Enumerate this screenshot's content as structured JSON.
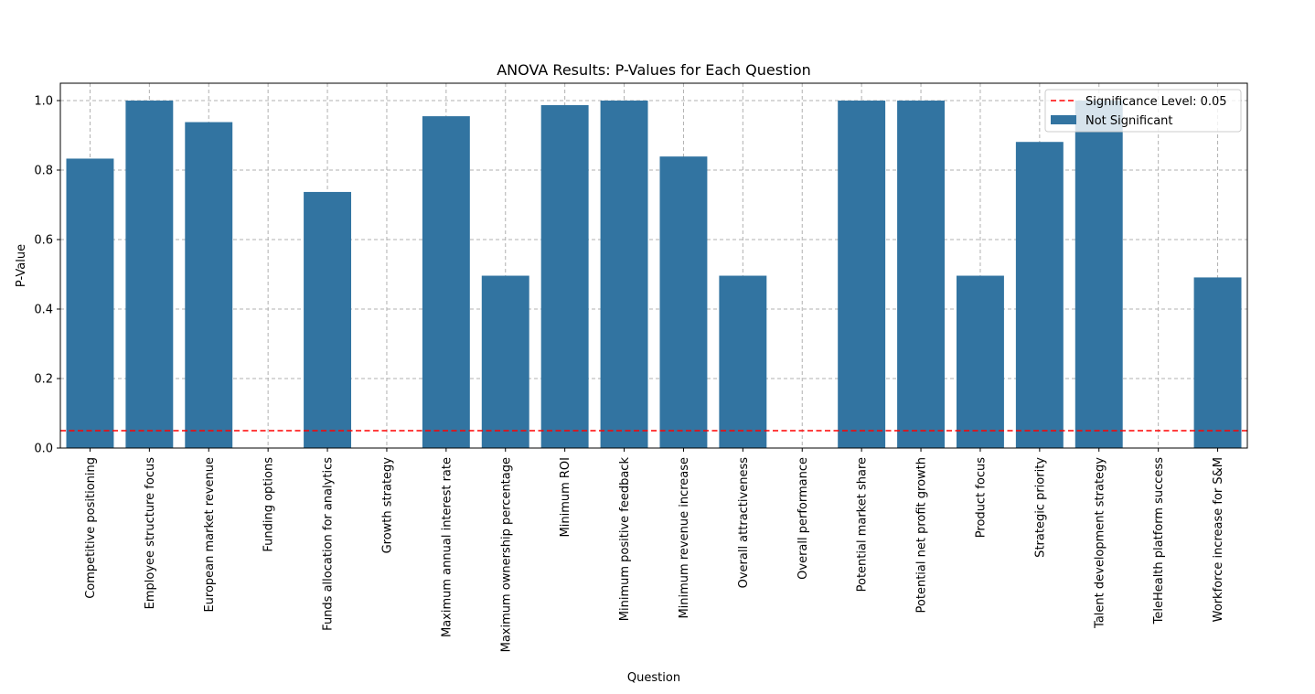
{
  "chart_data": {
    "type": "bar",
    "title": "ANOVA Results: P-Values for Each Question",
    "xlabel": "Question",
    "ylabel": "P-Value",
    "ylim": [
      0,
      1.05
    ],
    "yticks": [
      "0.0",
      "0.2",
      "0.4",
      "0.6",
      "0.8",
      "1.0"
    ],
    "grid": true,
    "legend_position": "top-right",
    "categories": [
      "Competitive positioning",
      "Employee structure focus",
      "European market revenue",
      "Funding options",
      "Funds allocation for analytics",
      "Growth strategy",
      "Maximum annual interest rate",
      "Maximum ownership percentage",
      "Minimum ROI",
      "Minimum positive feedback",
      "Minimum revenue increase",
      "Overall attractiveness",
      "Overall performance",
      "Potential market share",
      "Potential net profit growth",
      "Product focus",
      "Strategic priority",
      "Talent development strategy",
      "TeleHealth platform success",
      "Workforce increase for S&M"
    ],
    "series": [
      {
        "name": "Not Significant",
        "color": "#3274a1",
        "values": [
          0.833,
          1.0,
          0.938,
          null,
          0.737,
          null,
          0.955,
          0.496,
          0.987,
          1.0,
          0.839,
          0.496,
          null,
          1.0,
          1.0,
          0.496,
          0.881,
          1.0,
          null,
          0.491
        ]
      }
    ],
    "reference_line": {
      "name": "Significance Level: 0.05",
      "value": 0.05,
      "color": "#ff0000",
      "style": "dashed"
    }
  }
}
